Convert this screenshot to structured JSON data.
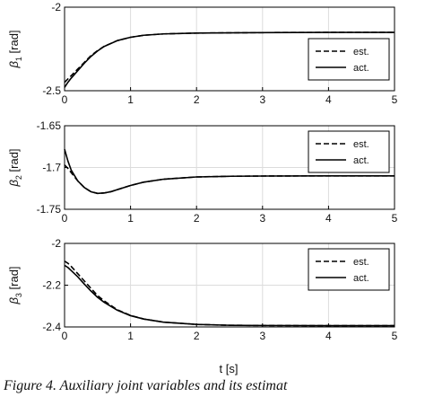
{
  "caption": "Figure 4. Auxiliary joint variables and its estimat",
  "chart_data": [
    {
      "type": "line",
      "ylabel_symbol": "β",
      "ylabel_sub": "1",
      "ylabel_unit": "[rad]",
      "xlim": [
        0,
        5
      ],
      "ylim": [
        -2.5,
        -2
      ],
      "xticks": [
        0,
        1,
        2,
        3,
        4,
        5
      ],
      "yticks": [
        -2.5,
        -2
      ],
      "grid": true,
      "legend": "right",
      "series": [
        {
          "name": "est.",
          "style": "dashed",
          "x": [
            0,
            0.05,
            0.1,
            0.2,
            0.3,
            0.4,
            0.5,
            0.6,
            0.8,
            1.0,
            1.2,
            1.5,
            2.0,
            3.0,
            4.0,
            5.0
          ],
          "y": [
            -2.45,
            -2.43,
            -2.41,
            -2.37,
            -2.33,
            -2.29,
            -2.26,
            -2.234,
            -2.2,
            -2.18,
            -2.168,
            -2.16,
            -2.155,
            -2.152,
            -2.151,
            -2.151
          ]
        },
        {
          "name": "act.",
          "style": "solid",
          "x": [
            0,
            0.05,
            0.1,
            0.2,
            0.3,
            0.4,
            0.5,
            0.6,
            0.8,
            1.0,
            1.2,
            1.5,
            2.0,
            3.0,
            4.0,
            5.0
          ],
          "y": [
            -2.48,
            -2.45,
            -2.425,
            -2.38,
            -2.335,
            -2.295,
            -2.262,
            -2.235,
            -2.2,
            -2.18,
            -2.168,
            -2.16,
            -2.155,
            -2.152,
            -2.151,
            -2.151
          ]
        }
      ]
    },
    {
      "type": "line",
      "ylabel_symbol": "β",
      "ylabel_sub": "2",
      "ylabel_unit": "[rad]",
      "xlim": [
        0,
        5
      ],
      "ylim": [
        -1.75,
        -1.65
      ],
      "xticks": [
        0,
        1,
        2,
        3,
        4,
        5
      ],
      "yticks": [
        -1.75,
        -1.7,
        -1.65
      ],
      "grid": true,
      "legend": "top-right",
      "series": [
        {
          "name": "est.",
          "style": "dashed",
          "x": [
            0,
            0.05,
            0.1,
            0.2,
            0.3,
            0.4,
            0.5,
            0.6,
            0.7,
            0.8,
            1.0,
            1.2,
            1.5,
            2.0,
            2.5,
            3.0,
            4.0,
            5.0
          ],
          "y": [
            -1.697,
            -1.701,
            -1.706,
            -1.716,
            -1.724,
            -1.729,
            -1.731,
            -1.7305,
            -1.729,
            -1.7265,
            -1.7215,
            -1.7175,
            -1.714,
            -1.7113,
            -1.7105,
            -1.7102,
            -1.71,
            -1.71
          ]
        },
        {
          "name": "act.",
          "style": "solid",
          "x": [
            0,
            0.05,
            0.1,
            0.2,
            0.3,
            0.4,
            0.5,
            0.6,
            0.7,
            0.8,
            1.0,
            1.2,
            1.5,
            2.0,
            2.5,
            3.0,
            4.0,
            5.0
          ],
          "y": [
            -1.678,
            -1.692,
            -1.703,
            -1.716,
            -1.724,
            -1.729,
            -1.731,
            -1.7305,
            -1.729,
            -1.7265,
            -1.7215,
            -1.7175,
            -1.714,
            -1.7113,
            -1.7105,
            -1.7102,
            -1.71,
            -1.71
          ]
        }
      ]
    },
    {
      "type": "line",
      "ylabel_symbol": "β",
      "ylabel_sub": "3",
      "ylabel_unit": "[rad]",
      "xlim": [
        0,
        5
      ],
      "ylim": [
        -2.4,
        -2.0
      ],
      "xticks": [
        0,
        1,
        2,
        3,
        4,
        5
      ],
      "yticks": [
        -2.4,
        -2.2,
        -2
      ],
      "grid": true,
      "legend": "top-right",
      "series": [
        {
          "name": "est.",
          "style": "dashed",
          "x": [
            0,
            0.05,
            0.1,
            0.2,
            0.3,
            0.4,
            0.5,
            0.6,
            0.8,
            1.0,
            1.2,
            1.5,
            2.0,
            2.5,
            3.0,
            4.0,
            5.0
          ],
          "y": [
            -2.085,
            -2.095,
            -2.11,
            -2.145,
            -2.18,
            -2.215,
            -2.25,
            -2.275,
            -2.318,
            -2.345,
            -2.362,
            -2.377,
            -2.388,
            -2.392,
            -2.393,
            -2.394,
            -2.394
          ]
        },
        {
          "name": "act.",
          "style": "solid",
          "x": [
            0,
            0.05,
            0.1,
            0.2,
            0.3,
            0.4,
            0.5,
            0.6,
            0.8,
            1.0,
            1.2,
            1.5,
            2.0,
            2.5,
            3.0,
            4.0,
            5.0
          ],
          "y": [
            -2.105,
            -2.115,
            -2.13,
            -2.16,
            -2.195,
            -2.228,
            -2.258,
            -2.282,
            -2.32,
            -2.346,
            -2.362,
            -2.377,
            -2.388,
            -2.392,
            -2.393,
            -2.394,
            -2.394
          ]
        }
      ]
    }
  ],
  "xlabel": "t [s]"
}
